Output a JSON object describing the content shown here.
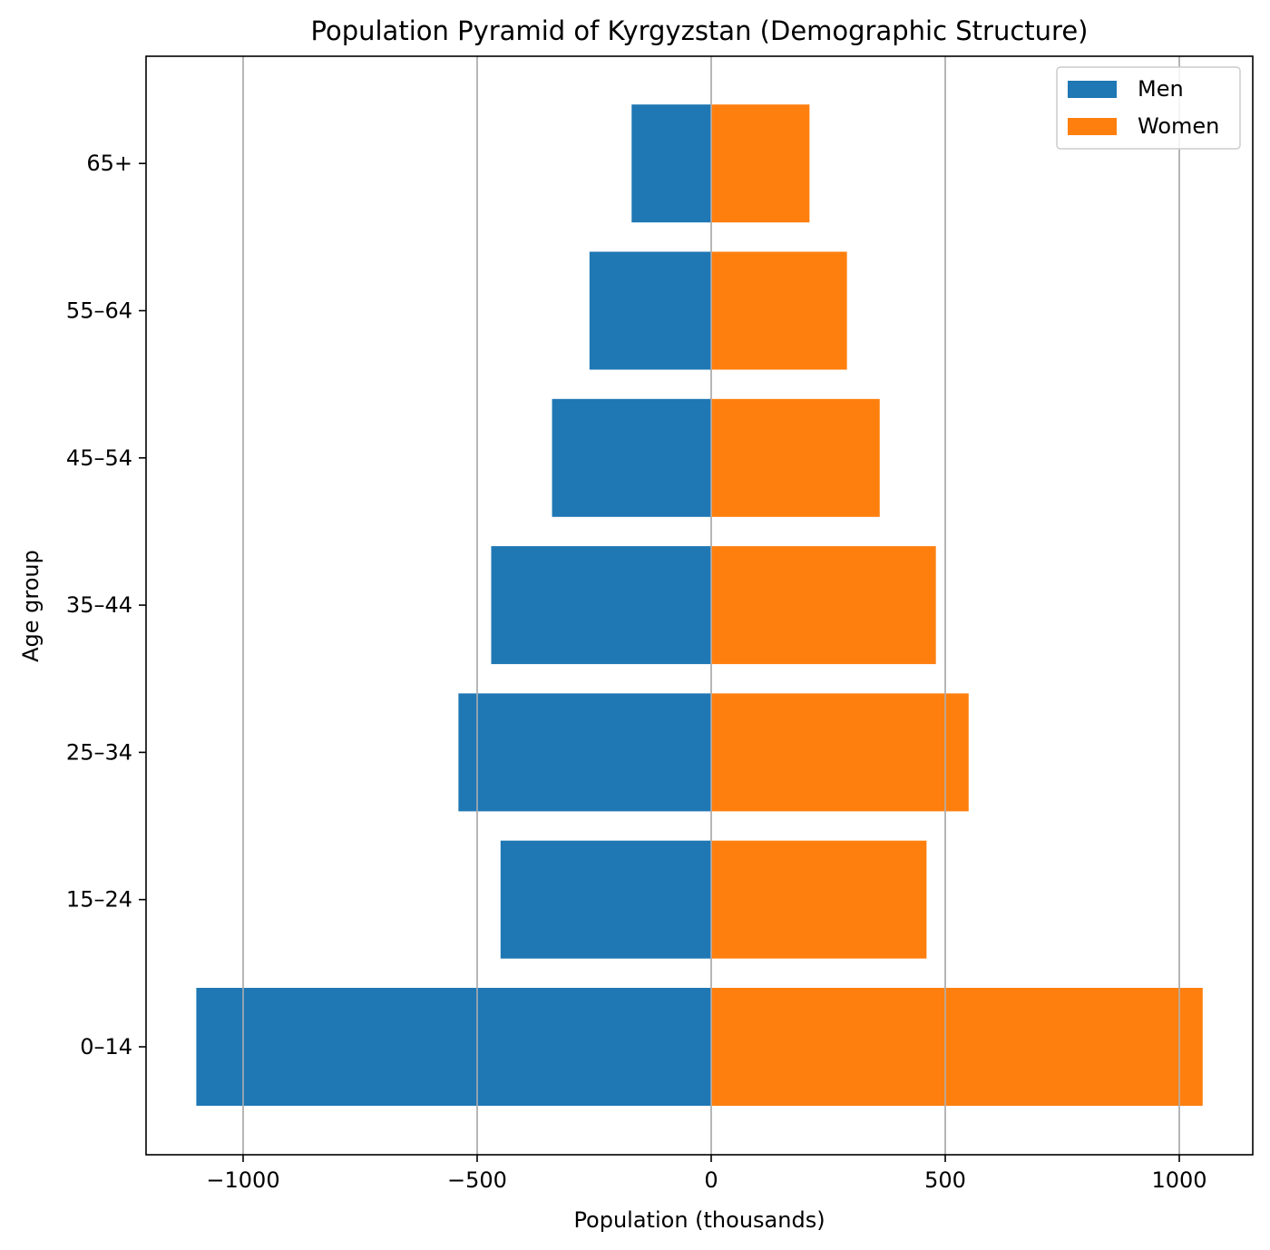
{
  "chart_data": {
    "type": "bar",
    "orientation": "horizontal",
    "title": "Population Pyramid of Kyrgyzstan (Demographic Structure)",
    "xlabel": "Population (thousands)",
    "ylabel": "Age group",
    "categories": [
      "0–14",
      "15–24",
      "25–34",
      "35–44",
      "45–54",
      "55–64",
      "65+"
    ],
    "series": [
      {
        "name": "Men",
        "color": "#1f77b4",
        "values": [
          -1100,
          -450,
          -540,
          -470,
          -340,
          -260,
          -170
        ]
      },
      {
        "name": "Women",
        "color": "#ff7f0e",
        "values": [
          1050,
          460,
          550,
          480,
          360,
          290,
          210
        ]
      }
    ],
    "xlim": [
      -1200,
      1200
    ],
    "xticks": [
      -1000,
      -500,
      0,
      500,
      1000
    ],
    "xtick_labels": [
      "−1000",
      "−500",
      "0",
      "500",
      "1000"
    ],
    "grid": "x",
    "legend_position": "top-right"
  }
}
